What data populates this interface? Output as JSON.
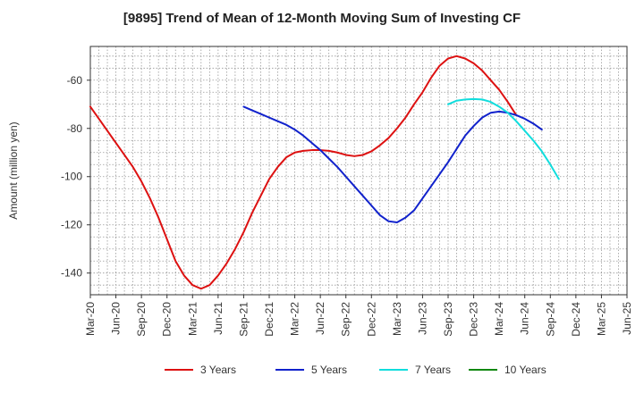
{
  "chart_data": {
    "type": "line",
    "title": "[9895]  Trend of Mean of 12-Month Moving Sum of Investing CF",
    "xlabel": "",
    "ylabel": "Amount (million yen)",
    "ylim": [
      -149,
      -46
    ],
    "yticks": [
      -140,
      -120,
      -100,
      -80,
      -60
    ],
    "ytick_labels": [
      "-140",
      "-120",
      "-100",
      "-80",
      "-60"
    ],
    "xrange": [
      "Mar-20",
      "Jun-25"
    ],
    "xtick_labels": [
      "Mar-20",
      "Jun-20",
      "Sep-20",
      "Dec-20",
      "Mar-21",
      "Jun-21",
      "Sep-21",
      "Dec-21",
      "Mar-22",
      "Jun-22",
      "Sep-22",
      "Dec-22",
      "Mar-23",
      "Jun-23",
      "Sep-23",
      "Dec-23",
      "Mar-24",
      "Jun-24",
      "Sep-24",
      "Dec-24",
      "Mar-25",
      "Jun-25"
    ],
    "grid": true,
    "legend_position": "bottom",
    "series": [
      {
        "name": "3 Years",
        "color": "#dd1111",
        "start": "Mar-20",
        "values": [
          -71,
          -76,
          -81,
          -86,
          -91,
          -96,
          -102,
          -109,
          -117,
          -126,
          -135,
          -141,
          -145,
          -146.5,
          -145,
          -141,
          -136,
          -130,
          -123,
          -115,
          -108,
          -101,
          -96,
          -92,
          -90,
          -89.3,
          -89,
          -89,
          -89.3,
          -90,
          -91,
          -91.5,
          -91,
          -89.5,
          -87,
          -84,
          -80,
          -75.5,
          -70,
          -65,
          -59,
          -54,
          -51,
          -50,
          -51,
          -53,
          -56,
          -60,
          -64,
          -69,
          -74.5
        ]
      },
      {
        "name": "5 Years",
        "color": "#1122cc",
        "start": "Sep-21",
        "values": [
          -71,
          -72.5,
          -74,
          -75.5,
          -77,
          -78.5,
          -80.5,
          -83,
          -86,
          -89,
          -92.5,
          -96,
          -100,
          -104,
          -108,
          -112,
          -116,
          -118.5,
          -119,
          -117,
          -114,
          -109,
          -104,
          -99,
          -94,
          -88.5,
          -83,
          -79,
          -75.5,
          -73.5,
          -73,
          -73.5,
          -74.5,
          -76,
          -78,
          -80.5
        ]
      },
      {
        "name": "7 Years",
        "color": "#11dddd",
        "start": "Sep-23",
        "values": [
          -70,
          -68.5,
          -68,
          -67.8,
          -68,
          -69,
          -71,
          -73.5,
          -77,
          -81,
          -85,
          -89.5,
          -95,
          -101
        ]
      },
      {
        "name": "10 Years",
        "color": "#118811",
        "start": "",
        "values": []
      }
    ]
  }
}
